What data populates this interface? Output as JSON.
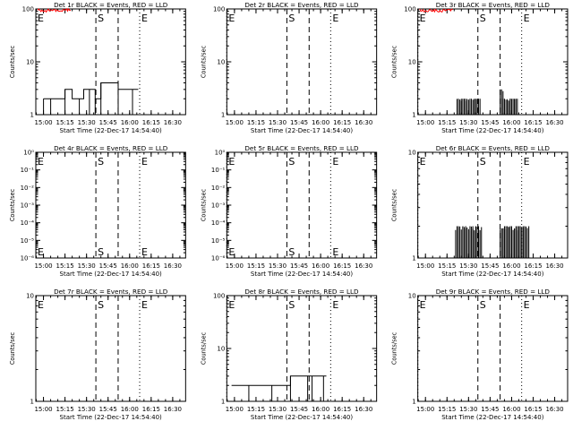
{
  "chart_data": [
    {
      "type": "line",
      "title": "Det 1r BLACK = Events, RED = LLD",
      "ylabel": "Counts/sec",
      "xlabel": "Start Time (22-Dec-17 14:54:40)",
      "y_scale": "log",
      "ylim": [
        1,
        100
      ],
      "y_ticks": [
        {
          "value": 1,
          "label": "1"
        },
        {
          "value": 10,
          "label": "10"
        },
        {
          "value": 100,
          "label": "100"
        }
      ],
      "xlim": [
        "14:54:40",
        "16:39:00"
      ],
      "x_ticks": [
        "15:00",
        "15:15",
        "15:30",
        "15:45",
        "16:00",
        "16:15",
        "16:30"
      ],
      "markers": [
        {
          "time": "14:54:40",
          "label": "E",
          "style": "dotted"
        },
        {
          "time": "15:36:30",
          "label": "S",
          "style": "dashed"
        },
        {
          "time": "15:52:00",
          "label": "",
          "style": "dashed"
        },
        {
          "time": "16:07:00",
          "label": "E",
          "style": "dotted"
        }
      ],
      "series": [
        {
          "name": "BLACK",
          "color": "#000000",
          "style": "step",
          "x": [
            "15:00",
            "15:05",
            "15:10",
            "15:15",
            "15:20",
            "15:25",
            "15:28",
            "15:32",
            "15:36",
            "15:40",
            "15:45",
            "15:47",
            "15:52",
            "15:55",
            "15:58",
            "16:02",
            "16:06"
          ],
          "values": [
            2,
            2,
            2,
            3,
            2,
            2,
            3,
            3,
            2,
            4,
            4,
            4,
            3,
            3,
            3,
            3,
            3
          ]
        },
        {
          "name": "RED",
          "color": "#ff0000",
          "style": "noisy",
          "x": [
            "14:56",
            "15:00",
            "15:05",
            "15:10",
            "15:15",
            "15:19"
          ],
          "values": [
            96,
            92,
            95,
            91,
            94,
            98
          ]
        }
      ]
    },
    {
      "type": "line",
      "title": "Det 2r BLACK = Events, RED = LLD",
      "ylabel": "Counts/sec",
      "xlabel": "Start Time (22-Dec-17 14:54:40)",
      "y_scale": "log",
      "ylim": [
        1,
        100
      ],
      "y_ticks": [
        {
          "value": 1,
          "label": "1"
        },
        {
          "value": 10,
          "label": "10"
        },
        {
          "value": 100,
          "label": "100"
        }
      ],
      "xlim": [
        "14:54:40",
        "16:39:00"
      ],
      "x_ticks": [
        "15:00",
        "15:15",
        "15:30",
        "15:45",
        "16:00",
        "16:15",
        "16:30"
      ],
      "markers": [
        {
          "time": "14:54:40",
          "label": "E",
          "style": "dotted"
        },
        {
          "time": "15:36:30",
          "label": "S",
          "style": "dashed"
        },
        {
          "time": "15:52:00",
          "label": "",
          "style": "dashed"
        },
        {
          "time": "16:07:00",
          "label": "E",
          "style": "dotted"
        }
      ],
      "series": []
    },
    {
      "type": "line",
      "title": "Det 3r BLACK = Events, RED = LLD",
      "ylabel": "Counts/sec",
      "xlabel": "Start Time (22-Dec-17 14:54:40)",
      "y_scale": "log",
      "ylim": [
        1,
        100
      ],
      "y_ticks": [
        {
          "value": 1,
          "label": "1"
        },
        {
          "value": 10,
          "label": "10"
        },
        {
          "value": 100,
          "label": "100"
        }
      ],
      "xlim": [
        "14:54:40",
        "16:39:00"
      ],
      "x_ticks": [
        "15:00",
        "15:15",
        "15:30",
        "15:45",
        "16:00",
        "16:15",
        "16:30"
      ],
      "markers": [
        {
          "time": "14:54:40",
          "label": "E",
          "style": "dotted"
        },
        {
          "time": "15:36:30",
          "label": "S",
          "style": "dashed"
        },
        {
          "time": "15:52:00",
          "label": "",
          "style": "dashed"
        },
        {
          "time": "16:07:00",
          "label": "E",
          "style": "dotted"
        }
      ],
      "series": [
        {
          "name": "BLACK",
          "color": "#000000",
          "style": "bursty",
          "x": [
            "15:22",
            "15:25",
            "15:28",
            "15:31",
            "15:34",
            "15:36",
            "15:52",
            "15:54",
            "15:57",
            "15:59",
            "16:02"
          ],
          "values": [
            2,
            2,
            2,
            2,
            2,
            2,
            3,
            2,
            2,
            2,
            2
          ]
        },
        {
          "name": "RED",
          "color": "#ff0000",
          "style": "noisy",
          "x": [
            "14:56",
            "15:00",
            "15:05",
            "15:10",
            "15:15",
            "15:19"
          ],
          "values": [
            96,
            92,
            95,
            91,
            94,
            98
          ]
        }
      ]
    },
    {
      "type": "line",
      "title": "Det 4r BLACK = Events, RED = LLD",
      "ylabel": "Counts/sec",
      "xlabel": "Start Time (22-Dec-17 14:54:40)",
      "y_scale": "log",
      "ylim": [
        1e-06,
        1
      ],
      "y_ticks": [
        {
          "value": 1e-06,
          "label": "10⁻⁶"
        },
        {
          "value": 1e-05,
          "label": "10⁻⁵"
        },
        {
          "value": 0.0001,
          "label": "10⁻⁴"
        },
        {
          "value": 0.001,
          "label": "10⁻³"
        },
        {
          "value": 0.01,
          "label": "10⁻²"
        },
        {
          "value": 0.1,
          "label": "10⁻¹"
        },
        {
          "value": 1,
          "label": "10⁰"
        }
      ],
      "xlim": [
        "14:54:40",
        "16:39:00"
      ],
      "x_ticks": [
        "15:00",
        "15:15",
        "15:30",
        "15:45",
        "16:00",
        "16:15",
        "16:30"
      ],
      "markers": [
        {
          "time": "14:54:40",
          "label": "E",
          "style": "dotted"
        },
        {
          "time": "15:36:30",
          "label": "S",
          "style": "dashed"
        },
        {
          "time": "15:52:00",
          "label": "",
          "style": "dashed"
        },
        {
          "time": "16:07:00",
          "label": "E",
          "style": "dotted"
        }
      ],
      "series": []
    },
    {
      "type": "line",
      "title": "Det 5r BLACK = Events, RED = LLD",
      "ylabel": "Counts/sec",
      "xlabel": "Start Time (22-Dec-17 14:54:40)",
      "y_scale": "log",
      "ylim": [
        1e-06,
        1
      ],
      "y_ticks": [
        {
          "value": 1e-06,
          "label": "10⁻⁶"
        },
        {
          "value": 1e-05,
          "label": "10⁻⁵"
        },
        {
          "value": 0.0001,
          "label": "10⁻⁴"
        },
        {
          "value": 0.001,
          "label": "10⁻³"
        },
        {
          "value": 0.01,
          "label": "10⁻²"
        },
        {
          "value": 0.1,
          "label": "10⁻¹"
        },
        {
          "value": 1,
          "label": "10⁰"
        }
      ],
      "xlim": [
        "14:54:40",
        "16:39:00"
      ],
      "x_ticks": [
        "15:00",
        "15:15",
        "15:30",
        "15:45",
        "16:00",
        "16:15",
        "16:30"
      ],
      "markers": [
        {
          "time": "14:54:40",
          "label": "E",
          "style": "dotted"
        },
        {
          "time": "15:36:30",
          "label": "S",
          "style": "dashed"
        },
        {
          "time": "15:52:00",
          "label": "",
          "style": "dashed"
        },
        {
          "time": "16:07:00",
          "label": "E",
          "style": "dotted"
        }
      ],
      "series": []
    },
    {
      "type": "line",
      "title": "Det 6r BLACK = Events, RED = LLD",
      "ylabel": "Counts/sec",
      "xlabel": "Start Time (22-Dec-17 14:54:40)",
      "y_scale": "log",
      "ylim": [
        1,
        10
      ],
      "y_ticks": [
        {
          "value": 1,
          "label": "1"
        },
        {
          "value": 10,
          "label": "10"
        }
      ],
      "xlim": [
        "14:54:40",
        "16:39:00"
      ],
      "x_ticks": [
        "15:00",
        "15:15",
        "15:30",
        "15:45",
        "16:00",
        "16:15",
        "16:30"
      ],
      "markers": [
        {
          "time": "14:54:40",
          "label": "E",
          "style": "dotted"
        },
        {
          "time": "15:36:30",
          "label": "S",
          "style": "dashed"
        },
        {
          "time": "15:52:00",
          "label": "",
          "style": "dashed"
        },
        {
          "time": "16:07:00",
          "label": "E",
          "style": "dotted"
        }
      ],
      "series": [
        {
          "name": "BLACK",
          "color": "#000000",
          "style": "bursty",
          "x": [
            "15:21",
            "15:23",
            "15:26",
            "15:28",
            "15:31",
            "15:33",
            "15:35",
            "15:37",
            "15:52",
            "15:54",
            "15:56",
            "15:58",
            "16:00",
            "16:02",
            "16:04",
            "16:06",
            "16:08",
            "16:10"
          ],
          "values": [
            2,
            2,
            2,
            2,
            2,
            2,
            2,
            2,
            2,
            2,
            2,
            2,
            2,
            2,
            2,
            2,
            2,
            2
          ]
        }
      ]
    },
    {
      "type": "line",
      "title": "Det 7r BLACK = Events, RED = LLD",
      "ylabel": "Counts/sec",
      "xlabel": "Start Time (22-Dec-17 14:54:40)",
      "y_scale": "log",
      "ylim": [
        1,
        10
      ],
      "y_ticks": [
        {
          "value": 1,
          "label": "1"
        },
        {
          "value": 10,
          "label": "10"
        }
      ],
      "xlim": [
        "14:54:40",
        "16:39:00"
      ],
      "x_ticks": [
        "15:00",
        "15:15",
        "15:30",
        "15:45",
        "16:00",
        "16:15",
        "16:30"
      ],
      "markers": [
        {
          "time": "14:54:40",
          "label": "E",
          "style": "dotted"
        },
        {
          "time": "15:36:30",
          "label": "S",
          "style": "dashed"
        },
        {
          "time": "15:52:00",
          "label": "",
          "style": "dashed"
        },
        {
          "time": "16:07:00",
          "label": "E",
          "style": "dotted"
        }
      ],
      "series": []
    },
    {
      "type": "line",
      "title": "Det 8r BLACK = Events, RED = LLD",
      "ylabel": "Counts/sec",
      "xlabel": "Start Time (22-Dec-17 14:54:40)",
      "y_scale": "log",
      "ylim": [
        1,
        100
      ],
      "y_ticks": [
        {
          "value": 1,
          "label": "1"
        },
        {
          "value": 10,
          "label": "10"
        },
        {
          "value": 100,
          "label": "100"
        }
      ],
      "xlim": [
        "14:54:40",
        "16:39:00"
      ],
      "x_ticks": [
        "15:00",
        "15:15",
        "15:30",
        "15:45",
        "16:00",
        "16:15",
        "16:30"
      ],
      "markers": [
        {
          "time": "14:54:40",
          "label": "E",
          "style": "dotted"
        },
        {
          "time": "15:36:30",
          "label": "S",
          "style": "dashed"
        },
        {
          "time": "15:52:00",
          "label": "",
          "style": "dashed"
        },
        {
          "time": "16:07:00",
          "label": "E",
          "style": "dotted"
        }
      ],
      "series": [
        {
          "name": "BLACK",
          "color": "#000000",
          "style": "step",
          "x": [
            "14:58",
            "15:02",
            "15:06",
            "15:10",
            "15:14",
            "15:18",
            "15:22",
            "15:26",
            "15:29",
            "15:32",
            "15:35",
            "15:39",
            "15:42",
            "15:45",
            "15:48",
            "15:51",
            "15:54",
            "15:57",
            "16:00",
            "16:02",
            "16:04"
          ],
          "values": [
            2,
            2,
            2,
            2,
            2,
            2,
            2,
            2,
            2,
            2,
            2,
            3,
            3,
            3,
            3,
            3,
            3,
            3,
            3,
            3,
            3
          ]
        }
      ]
    },
    {
      "type": "line",
      "title": "Det 9r BLACK = Events, RED = LLD",
      "ylabel": "Counts/sec",
      "xlabel": "Start Time (22-Dec-17 14:54:40)",
      "y_scale": "log",
      "ylim": [
        1,
        10
      ],
      "y_ticks": [
        {
          "value": 1,
          "label": "1"
        },
        {
          "value": 10,
          "label": "10"
        }
      ],
      "xlim": [
        "14:54:40",
        "16:39:00"
      ],
      "x_ticks": [
        "15:00",
        "15:15",
        "15:30",
        "15:45",
        "16:00",
        "16:15",
        "16:30"
      ],
      "markers": [
        {
          "time": "14:54:40",
          "label": "E",
          "style": "dotted"
        },
        {
          "time": "15:36:30",
          "label": "S",
          "style": "dashed"
        },
        {
          "time": "15:52:00",
          "label": "",
          "style": "dashed"
        },
        {
          "time": "16:07:00",
          "label": "E",
          "style": "dotted"
        }
      ],
      "series": []
    }
  ]
}
